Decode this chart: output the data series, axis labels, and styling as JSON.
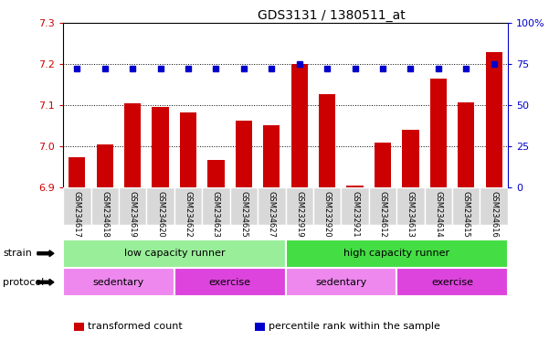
{
  "title": "GDS3131 / 1380511_at",
  "samples": [
    "GSM234617",
    "GSM234618",
    "GSM234619",
    "GSM234620",
    "GSM234622",
    "GSM234623",
    "GSM234625",
    "GSM234627",
    "GSM232919",
    "GSM232920",
    "GSM232921",
    "GSM234612",
    "GSM234613",
    "GSM234614",
    "GSM234615",
    "GSM234616"
  ],
  "bar_values": [
    6.975,
    7.005,
    7.105,
    7.097,
    7.083,
    6.967,
    7.063,
    7.052,
    7.2,
    7.128,
    6.905,
    7.01,
    7.04,
    7.165,
    7.108,
    7.23
  ],
  "dot_values": [
    72,
    72,
    72,
    72,
    72,
    72,
    72,
    72,
    75,
    72,
    72,
    72,
    72,
    72,
    72,
    75
  ],
  "bar_color": "#cc0000",
  "dot_color": "#0000cc",
  "ylim_left": [
    6.9,
    7.3
  ],
  "ylim_right": [
    0,
    100
  ],
  "yticks_left": [
    6.9,
    7.0,
    7.1,
    7.2,
    7.3
  ],
  "yticks_right": [
    0,
    25,
    50,
    75,
    100
  ],
  "ytick_labels_right": [
    "0",
    "25",
    "50",
    "75",
    "100%"
  ],
  "grid_lines": [
    7.0,
    7.1,
    7.2
  ],
  "strain_groups": [
    {
      "label": "low capacity runner",
      "start": 0,
      "end": 8,
      "color": "#99ee99"
    },
    {
      "label": "high capacity runner",
      "start": 8,
      "end": 16,
      "color": "#44dd44"
    }
  ],
  "protocol_groups": [
    {
      "label": "sedentary",
      "start": 0,
      "end": 4,
      "color": "#ee88ee"
    },
    {
      "label": "exercise",
      "start": 4,
      "end": 8,
      "color": "#dd44dd"
    },
    {
      "label": "sedentary",
      "start": 8,
      "end": 12,
      "color": "#ee88ee"
    },
    {
      "label": "exercise",
      "start": 12,
      "end": 16,
      "color": "#dd44dd"
    }
  ],
  "legend_items": [
    {
      "color": "#cc0000",
      "label": "transformed count"
    },
    {
      "color": "#0000cc",
      "label": "percentile rank within the sample"
    }
  ],
  "bar_width": 0.6,
  "bg_color": "#ffffff",
  "tick_color_left": "#cc0000",
  "tick_color_right": "#0000cc"
}
